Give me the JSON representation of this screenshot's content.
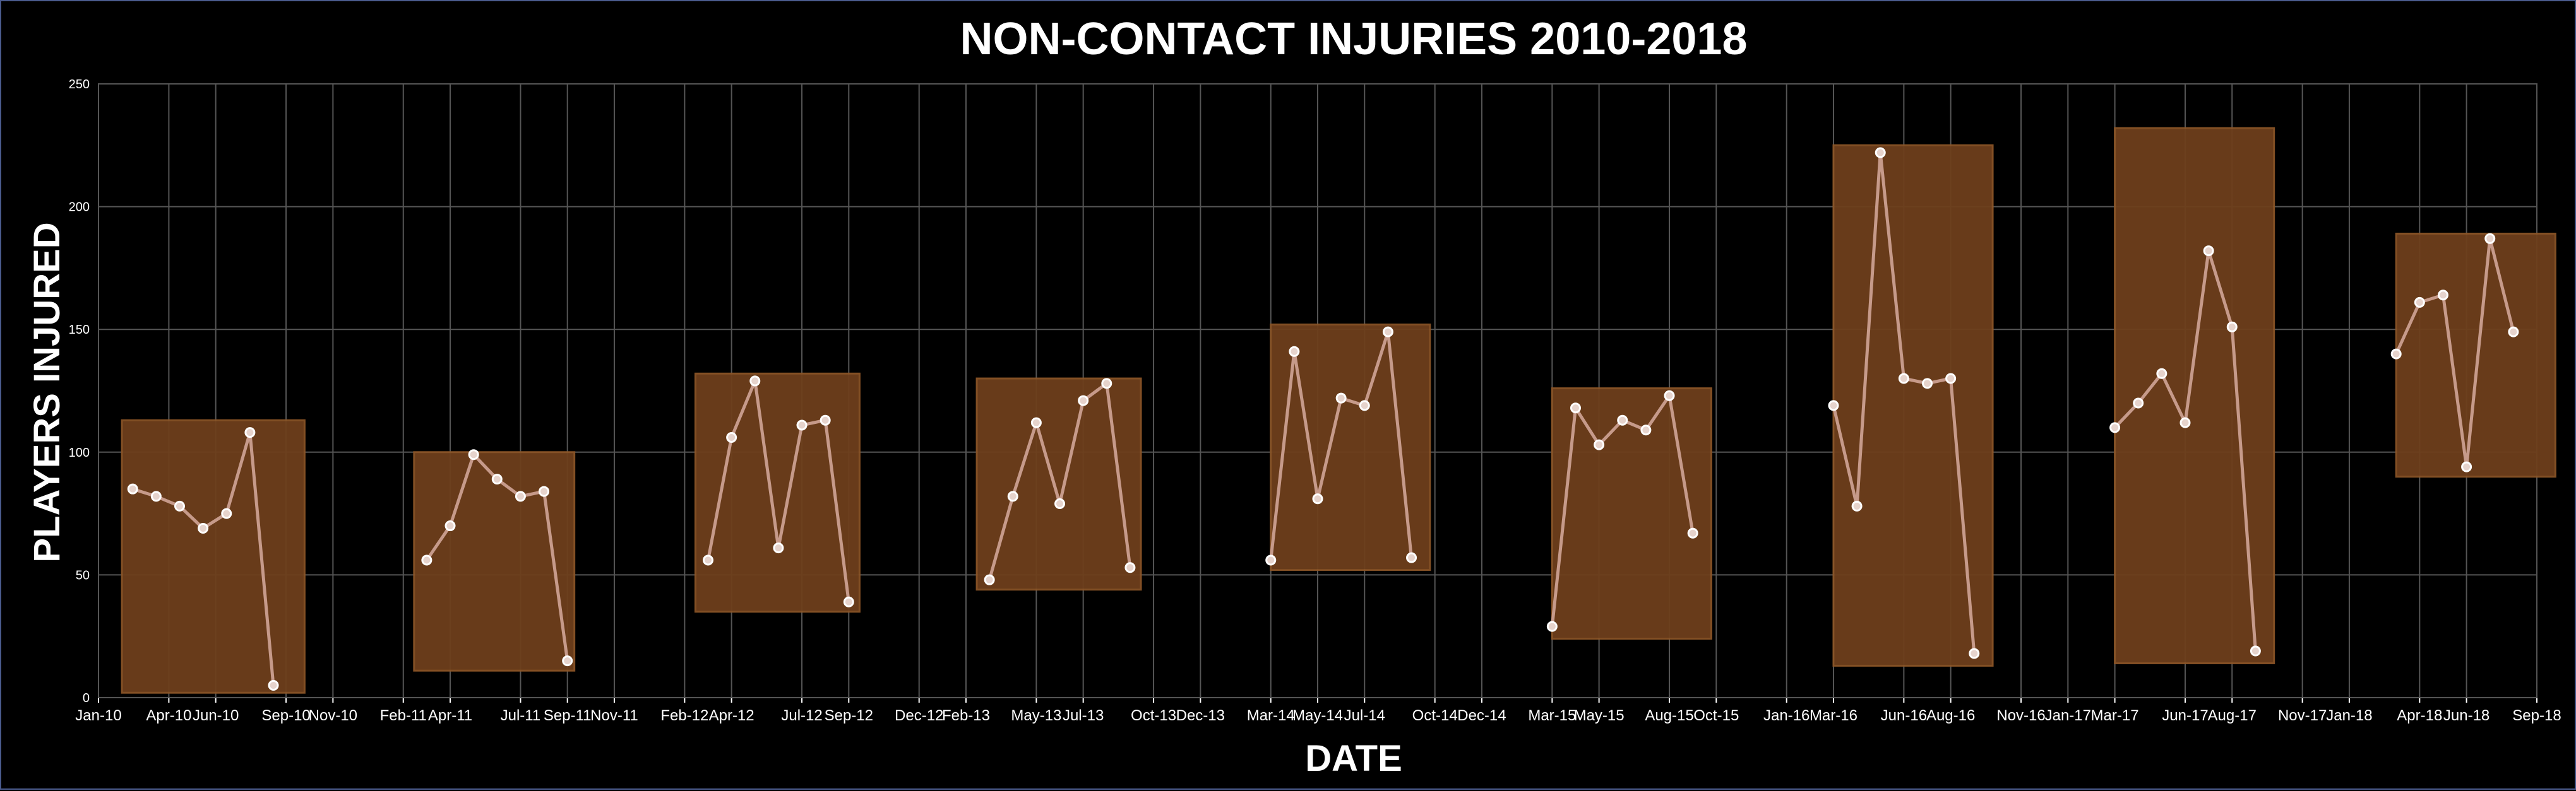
{
  "chart_data": {
    "type": "line",
    "title": "NON-CONTACT INJURIES 2010-2018",
    "xlabel": "DATE",
    "ylabel": "PLAYERS INJURED",
    "ylim": [
      0,
      250
    ],
    "xlim": [
      "2010-01",
      "2018-09"
    ],
    "yticks": [
      0,
      50,
      100,
      150,
      200,
      250
    ],
    "xticks": [
      {
        "date": "2010-01",
        "label": "Jan-10"
      },
      {
        "date": "2010-04",
        "label": "Apr-10"
      },
      {
        "date": "2010-06",
        "label": "Jun-10"
      },
      {
        "date": "2010-09",
        "label": "Sep-10"
      },
      {
        "date": "2010-11",
        "label": "Nov-10"
      },
      {
        "date": "2011-02",
        "label": "Feb-11"
      },
      {
        "date": "2011-04",
        "label": "Apr-11"
      },
      {
        "date": "2011-07",
        "label": "Jul-11"
      },
      {
        "date": "2011-09",
        "label": "Sep-11"
      },
      {
        "date": "2011-11",
        "label": "Nov-11"
      },
      {
        "date": "2012-02",
        "label": "Feb-12"
      },
      {
        "date": "2012-04",
        "label": "Apr-12"
      },
      {
        "date": "2012-07",
        "label": "Jul-12"
      },
      {
        "date": "2012-09",
        "label": "Sep-12"
      },
      {
        "date": "2012-12",
        "label": "Dec-12"
      },
      {
        "date": "2013-02",
        "label": "Feb-13"
      },
      {
        "date": "2013-05",
        "label": "May-13"
      },
      {
        "date": "2013-07",
        "label": "Jul-13"
      },
      {
        "date": "2013-10",
        "label": "Oct-13"
      },
      {
        "date": "2013-12",
        "label": "Dec-13"
      },
      {
        "date": "2014-03",
        "label": "Mar-14"
      },
      {
        "date": "2014-05",
        "label": "May-14"
      },
      {
        "date": "2014-07",
        "label": "Jul-14"
      },
      {
        "date": "2014-10",
        "label": "Oct-14"
      },
      {
        "date": "2014-12",
        "label": "Dec-14"
      },
      {
        "date": "2015-03",
        "label": "Mar-15"
      },
      {
        "date": "2015-05",
        "label": "May-15"
      },
      {
        "date": "2015-08",
        "label": "Aug-15"
      },
      {
        "date": "2015-10",
        "label": "Oct-15"
      },
      {
        "date": "2016-01",
        "label": "Jan-16"
      },
      {
        "date": "2016-03",
        "label": "Mar-16"
      },
      {
        "date": "2016-06",
        "label": "Jun-16"
      },
      {
        "date": "2016-08",
        "label": "Aug-16"
      },
      {
        "date": "2016-11",
        "label": "Nov-16"
      },
      {
        "date": "2017-01",
        "label": "Jan-17"
      },
      {
        "date": "2017-03",
        "label": "Mar-17"
      },
      {
        "date": "2017-06",
        "label": "Jun-17"
      },
      {
        "date": "2017-08",
        "label": "Aug-17"
      },
      {
        "date": "2017-11",
        "label": "Nov-17"
      },
      {
        "date": "2018-01",
        "label": "Jan-18"
      },
      {
        "date": "2018-04",
        "label": "Apr-18"
      },
      {
        "date": "2018-06",
        "label": "Jun-18"
      },
      {
        "date": "2018-09",
        "label": "Sep-18"
      }
    ],
    "grid": true,
    "colors": {
      "background": "#000000",
      "grid": "#555555",
      "box_fill": "#6e3f1c",
      "box_stroke": "#8a5426",
      "line": "#c69a8a",
      "marker_fill": "#e6d3cc",
      "marker_stroke": "#ffffff",
      "text": "#ffffff"
    },
    "seasons": [
      {
        "box": {
          "start": "2010-02-01",
          "end": "2010-09-25",
          "low": 2,
          "high": 113
        },
        "points": [
          {
            "x": "2010-02-15",
            "y": 85
          },
          {
            "x": "2010-03-15",
            "y": 82
          },
          {
            "x": "2010-04-15",
            "y": 78
          },
          {
            "x": "2010-05-15",
            "y": 69
          },
          {
            "x": "2010-06-15",
            "y": 75
          },
          {
            "x": "2010-07-15",
            "y": 108
          },
          {
            "x": "2010-08-15",
            "y": 5
          }
        ]
      },
      {
        "box": {
          "start": "2011-02-15",
          "end": "2011-09-10",
          "low": 11,
          "high": 100
        },
        "points": [
          {
            "x": "2011-03-01",
            "y": 56
          },
          {
            "x": "2011-04-01",
            "y": 70
          },
          {
            "x": "2011-05-01",
            "y": 99
          },
          {
            "x": "2011-06-01",
            "y": 89
          },
          {
            "x": "2011-07-01",
            "y": 82
          },
          {
            "x": "2011-08-01",
            "y": 84
          },
          {
            "x": "2011-09-01",
            "y": 15
          }
        ]
      },
      {
        "box": {
          "start": "2012-02-15",
          "end": "2012-09-15",
          "low": 35,
          "high": 132
        },
        "points": [
          {
            "x": "2012-03-01",
            "y": 56
          },
          {
            "x": "2012-04-01",
            "y": 106
          },
          {
            "x": "2012-05-01",
            "y": 129
          },
          {
            "x": "2012-06-01",
            "y": 61
          },
          {
            "x": "2012-07-01",
            "y": 111
          },
          {
            "x": "2012-08-01",
            "y": 113
          },
          {
            "x": "2012-09-01",
            "y": 39
          }
        ]
      },
      {
        "box": {
          "start": "2013-02-15",
          "end": "2013-09-15",
          "low": 44,
          "high": 130
        },
        "points": [
          {
            "x": "2013-03-01",
            "y": 48
          },
          {
            "x": "2013-04-01",
            "y": 82
          },
          {
            "x": "2013-05-01",
            "y": 112
          },
          {
            "x": "2013-06-01",
            "y": 79
          },
          {
            "x": "2013-07-01",
            "y": 121
          },
          {
            "x": "2013-08-01",
            "y": 128
          },
          {
            "x": "2013-09-01",
            "y": 53
          }
        ]
      },
      {
        "box": {
          "start": "2014-03-01",
          "end": "2014-09-25",
          "low": 52,
          "high": 152
        },
        "points": [
          {
            "x": "2014-03-01",
            "y": 56
          },
          {
            "x": "2014-04-01",
            "y": 141
          },
          {
            "x": "2014-05-01",
            "y": 81
          },
          {
            "x": "2014-06-01",
            "y": 122
          },
          {
            "x": "2014-07-01",
            "y": 119
          },
          {
            "x": "2014-08-01",
            "y": 149
          },
          {
            "x": "2014-09-01",
            "y": 57
          }
        ]
      },
      {
        "box": {
          "start": "2015-03-01",
          "end": "2015-09-25",
          "low": 24,
          "high": 126
        },
        "points": [
          {
            "x": "2015-03-01",
            "y": 29
          },
          {
            "x": "2015-04-01",
            "y": 118
          },
          {
            "x": "2015-05-01",
            "y": 103
          },
          {
            "x": "2015-06-01",
            "y": 113
          },
          {
            "x": "2015-07-01",
            "y": 109
          },
          {
            "x": "2015-08-01",
            "y": 123
          },
          {
            "x": "2015-09-01",
            "y": 67
          }
        ]
      },
      {
        "box": {
          "start": "2016-03-01",
          "end": "2016-09-25",
          "low": 13,
          "high": 225
        },
        "points": [
          {
            "x": "2016-03-01",
            "y": 119
          },
          {
            "x": "2016-04-01",
            "y": 78
          },
          {
            "x": "2016-05-01",
            "y": 222
          },
          {
            "x": "2016-06-01",
            "y": 130
          },
          {
            "x": "2016-07-01",
            "y": 128
          },
          {
            "x": "2016-08-01",
            "y": 130
          },
          {
            "x": "2016-09-01",
            "y": 18
          }
        ]
      },
      {
        "box": {
          "start": "2017-03-01",
          "end": "2017-09-25",
          "low": 14,
          "high": 232
        },
        "points": [
          {
            "x": "2017-03-01",
            "y": 110
          },
          {
            "x": "2017-04-01",
            "y": 120
          },
          {
            "x": "2017-05-01",
            "y": 132
          },
          {
            "x": "2017-06-01",
            "y": 112
          },
          {
            "x": "2017-07-01",
            "y": 182
          },
          {
            "x": "2017-08-01",
            "y": 151
          },
          {
            "x": "2017-09-01",
            "y": 19
          }
        ]
      },
      {
        "box": {
          "start": "2018-03-01",
          "end": "2018-09-25",
          "low": 90,
          "high": 189
        },
        "points": [
          {
            "x": "2018-03-01",
            "y": 140
          },
          {
            "x": "2018-04-01",
            "y": 161
          },
          {
            "x": "2018-05-01",
            "y": 164
          },
          {
            "x": "2018-06-01",
            "y": 94
          },
          {
            "x": "2018-07-01",
            "y": 187
          },
          {
            "x": "2018-08-01",
            "y": 149
          }
        ]
      }
    ]
  }
}
